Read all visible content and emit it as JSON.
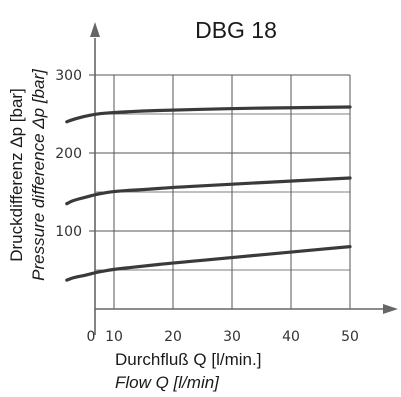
{
  "chart_data": {
    "type": "line",
    "title": "DBG 18",
    "xlabel": "Durchfluß Q [l/min.]",
    "xlabel_en": "Flow Q [l/min]",
    "ylabel": "Druckdifferenz Δp [bar]",
    "ylabel_en": "Pressure difference Δp [bar]",
    "origin_label": "0",
    "xlim": [
      0,
      50
    ],
    "ylim": [
      0,
      300
    ],
    "x_ticks": [
      10,
      20,
      30,
      40,
      50
    ],
    "y_ticks": [
      100,
      200,
      300
    ],
    "reference_lines": [
      50,
      150,
      250
    ],
    "grid": true,
    "series": [
      {
        "x": [
          2,
          3,
          5,
          7,
          10,
          15,
          20,
          30,
          40,
          50
        ],
        "values": [
          37,
          40,
          43,
          47,
          51,
          55,
          59,
          66,
          73,
          80
        ]
      },
      {
        "x": [
          2,
          3,
          5,
          7,
          10,
          15,
          20,
          30,
          40,
          50
        ],
        "values": [
          135,
          139,
          143,
          147,
          151,
          153,
          156,
          160,
          164,
          168
        ]
      },
      {
        "x": [
          2,
          3,
          5,
          7,
          10,
          15,
          20,
          30,
          40,
          50
        ],
        "values": [
          240,
          243,
          247,
          250,
          252,
          254,
          255,
          257,
          258,
          259
        ]
      }
    ],
    "colors": {
      "curve": "#3a3a3a",
      "grid": "#555555",
      "axis": "#666666",
      "text": "#1a1a1a"
    }
  }
}
